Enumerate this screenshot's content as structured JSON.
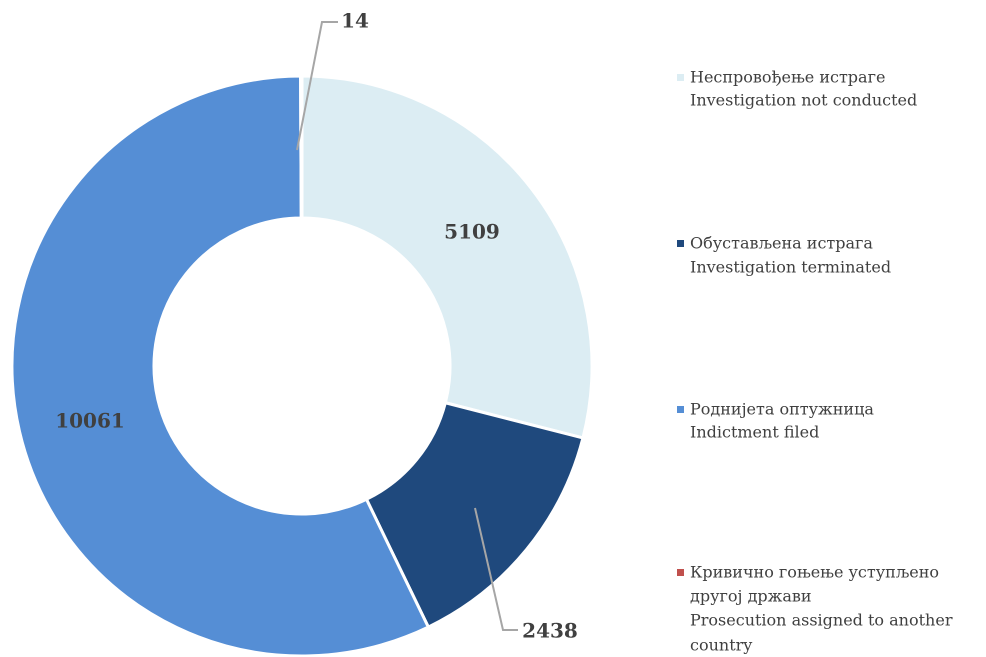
{
  "chart_data": {
    "type": "donut",
    "categories": [
      [
        "Неспровођење истраге",
        "Investigation not conducted"
      ],
      [
        "Обустављена истрага",
        "Investigation terminated"
      ],
      [
        "Роднијета оптужница",
        "Indictment filed"
      ],
      [
        "Кривично гоњење уступљено",
        "другој држави",
        "Prosecution assigned to another",
        "country"
      ]
    ],
    "values": [
      5109,
      2438,
      10061,
      14
    ],
    "colors": [
      "#dcedf3",
      "#1f497d",
      "#558ed5",
      "#c0504d"
    ],
    "legend": "right"
  }
}
